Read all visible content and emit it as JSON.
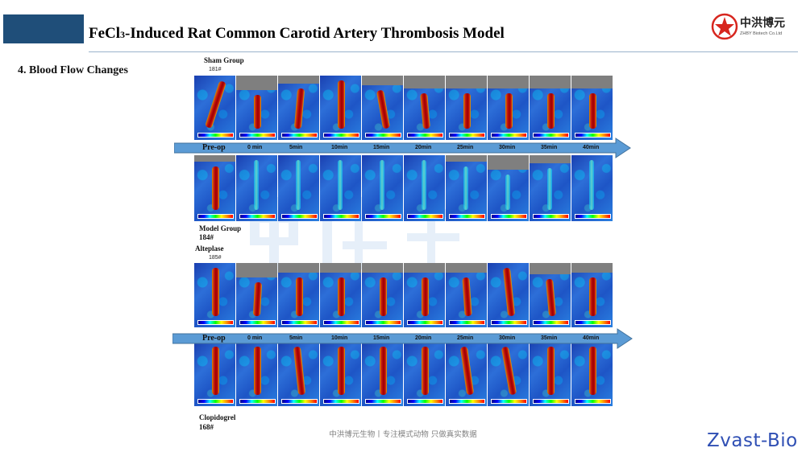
{
  "header": {
    "title_main": "FeCl",
    "title_sub": "3",
    "title_rest": "-Induced Rat Common Carotid Artery Thrombosis Model"
  },
  "logo": {
    "name_cn": "中洪博元",
    "name_en": "ZHBY Biotech Co.Ltd"
  },
  "section_title": "4. Blood Flow Changes",
  "groups": {
    "sham": {
      "label": "Sham Group",
      "id": "181#"
    },
    "model": {
      "label": "Model Group",
      "id": "184#"
    },
    "alteplase": {
      "label": "Alteplase",
      "id": "185#"
    },
    "clopidogrel": {
      "label": "Clopidogrel",
      "id": "168#"
    }
  },
  "timeline": [
    "Pre-op",
    "0 min",
    "5min",
    "10min",
    "15min",
    "20min",
    "25min",
    "30min",
    "35min",
    "40min"
  ],
  "footer": "中洪博元生物丨专注模式动物 只做真实数据",
  "brand": "Zvast-Bio",
  "colors": {
    "header_box": "#1f4e79",
    "arrow": "#5b9bd5",
    "brand": "#2f4fb4"
  }
}
